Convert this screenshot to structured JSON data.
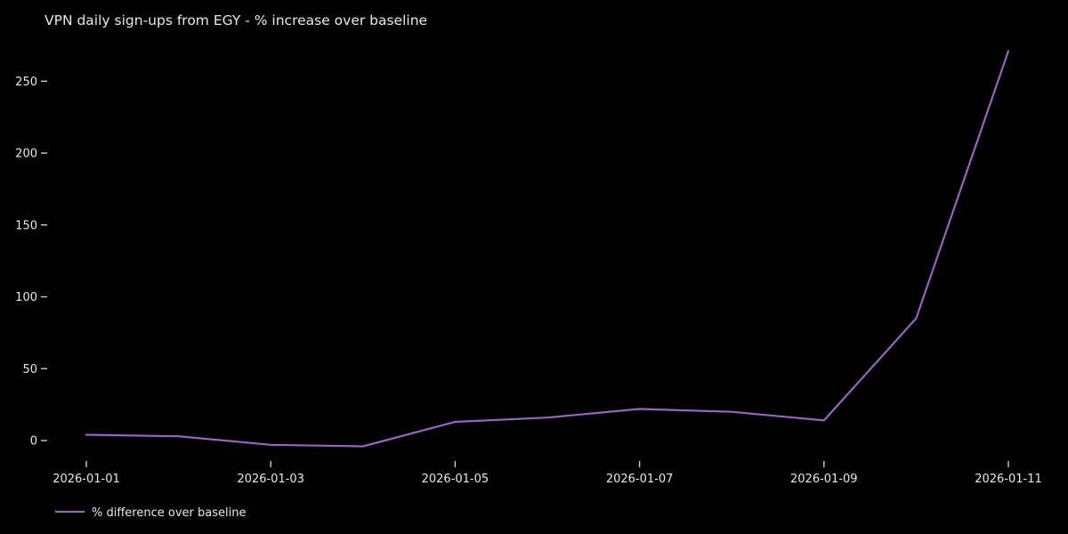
{
  "chart_data": {
    "type": "line",
    "title": "VPN daily sign-ups from EGY - % increase over baseline",
    "x": [
      "2026-01-01",
      "2026-01-02",
      "2026-01-03",
      "2026-01-04",
      "2026-01-05",
      "2026-01-06",
      "2026-01-07",
      "2026-01-08",
      "2026-01-09",
      "2026-01-10",
      "2026-01-11"
    ],
    "series": [
      {
        "name": "% difference over baseline",
        "values": [
          4,
          3,
          -3,
          -4,
          13,
          16,
          22,
          20,
          14,
          85,
          271
        ],
        "color": "#9467bd"
      }
    ],
    "xlabel": "",
    "ylabel": "",
    "y_ticks": [
      0,
      50,
      100,
      150,
      200,
      250
    ],
    "x_tick_labels": [
      "2026-01-01",
      "2026-01-03",
      "2026-01-05",
      "2026-01-07",
      "2026-01-09",
      "2026-01-11"
    ],
    "ylim": [
      -18,
      284
    ],
    "grid": false,
    "legend_position": "lower-left",
    "background_color": "#000000",
    "text_color": "#e8e8e8",
    "tick_color": "#cccccc"
  }
}
